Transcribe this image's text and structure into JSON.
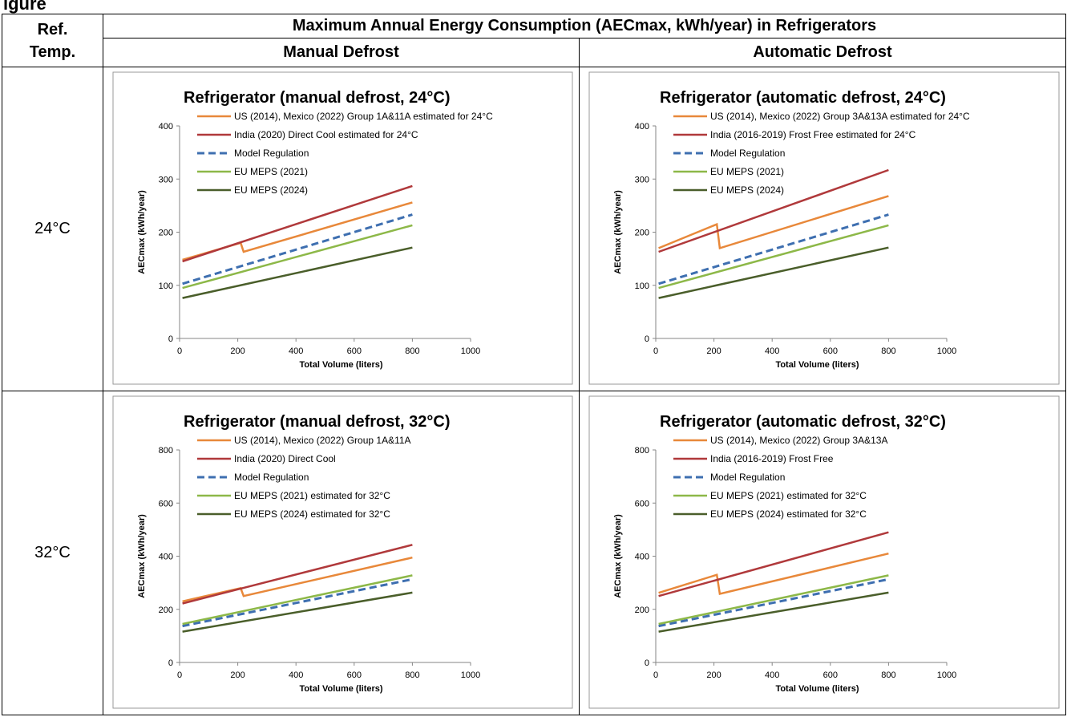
{
  "caption": "igure",
  "header": {
    "ref_label_1": "Ref.",
    "ref_label_2": "Temp.",
    "main_title": "Maximum Annual Energy Consumption (AECmax, kWh/year) in Refrigerators",
    "col_manual": "Manual Defrost",
    "col_auto": "Automatic Defrost"
  },
  "rows": [
    {
      "temp": "24°C"
    },
    {
      "temp": "32°C"
    }
  ],
  "colors": {
    "us_mexico": "#E8883A",
    "india": "#B0393B",
    "model": "#3E6FB0",
    "eu2021": "#8DB848",
    "eu2024": "#4A5E2A"
  },
  "chart_data": [
    {
      "type": "line",
      "title": "Refrigerator (manual defrost, 24°C)",
      "xlabel": "Total Volume (liters)",
      "ylabel": "AECmax (kWh/year)",
      "xlim": [
        0,
        1000
      ],
      "ylim": [
        0,
        400
      ],
      "xticks": [
        "0",
        "200",
        "400",
        "600",
        "800",
        "1000"
      ],
      "yticks": [
        "0",
        "100",
        "200",
        "300",
        "400"
      ],
      "series": [
        {
          "name": "US (2014), Mexico (2022) Group 1A&11A estimated for 24°C",
          "color": "#E8883A",
          "dash": false,
          "x": [
            10,
            210,
            220,
            800
          ],
          "y": [
            null,
            180,
            163,
            256
          ]
        },
        {
          "name": "India (2020) Direct Cool estimated for 24°C",
          "color": "#B0393B",
          "dash": false,
          "x": [
            10,
            800
          ],
          "y": [
            145,
            287
          ]
        },
        {
          "name": "Model Regulation",
          "color": "#3E6FB0",
          "dash": true,
          "x": [
            10,
            800
          ],
          "y": [
            103,
            233
          ]
        },
        {
          "name": "EU MEPS (2021)",
          "color": "#8DB848",
          "dash": false,
          "x": [
            10,
            800
          ],
          "y": [
            95,
            213
          ]
        },
        {
          "name": "EU MEPS (2024)",
          "color": "#4A5E2A",
          "dash": false,
          "x": [
            10,
            800
          ],
          "y": [
            76,
            171
          ]
        }
      ]
    },
    {
      "type": "line",
      "title": "Refrigerator (automatic defrost, 24°C)",
      "xlabel": "Total Volume (liters)",
      "ylabel": "AECmax (kWh/year)",
      "xlim": [
        0,
        1000
      ],
      "ylim": [
        0,
        400
      ],
      "xticks": [
        "0",
        "200",
        "400",
        "600",
        "800",
        "1000"
      ],
      "yticks": [
        "0",
        "100",
        "200",
        "300",
        "400"
      ],
      "series": [
        {
          "name": "US (2014), Mexico (2022) Group 3A&13A estimated for 24°C",
          "color": "#E8883A",
          "dash": false,
          "x": [
            10,
            210,
            220,
            800
          ],
          "y": [
            170,
            215,
            170,
            268
          ]
        },
        {
          "name": "India (2016-2019) Frost Free estimated for 24°C",
          "color": "#B0393B",
          "dash": false,
          "x": [
            10,
            800
          ],
          "y": [
            163,
            317
          ]
        },
        {
          "name": "Model Regulation",
          "color": "#3E6FB0",
          "dash": true,
          "x": [
            10,
            800
          ],
          "y": [
            103,
            233
          ]
        },
        {
          "name": "EU MEPS (2021)",
          "color": "#8DB848",
          "dash": false,
          "x": [
            10,
            800
          ],
          "y": [
            95,
            213
          ]
        },
        {
          "name": "EU MEPS (2024)",
          "color": "#4A5E2A",
          "dash": false,
          "x": [
            10,
            800
          ],
          "y": [
            76,
            171
          ]
        }
      ]
    },
    {
      "type": "line",
      "title": "Refrigerator (manual defrost, 32°C)",
      "xlabel": "Total Volume (liters)",
      "ylabel": "AECmax (kWh/year)",
      "xlim": [
        0,
        1000
      ],
      "ylim": [
        0,
        800
      ],
      "xticks": [
        "0",
        "200",
        "400",
        "600",
        "800",
        "1000"
      ],
      "yticks": [
        "0",
        "200",
        "400",
        "600",
        "800"
      ],
      "series": [
        {
          "name": "US (2014), Mexico (2022) Group 1A&11A",
          "color": "#E8883A",
          "dash": false,
          "x": [
            10,
            210,
            220,
            800
          ],
          "y": [
            null,
            280,
            250,
            395
          ]
        },
        {
          "name": "India (2020) Direct Cool",
          "color": "#B0393B",
          "dash": false,
          "x": [
            10,
            800
          ],
          "y": [
            222,
            443
          ]
        },
        {
          "name": "Model Regulation",
          "color": "#3E6FB0",
          "dash": true,
          "x": [
            10,
            800
          ],
          "y": [
            137,
            313
          ]
        },
        {
          "name": "EU MEPS (2021) estimated for 32°C",
          "color": "#8DB848",
          "dash": false,
          "x": [
            10,
            800
          ],
          "y": [
            145,
            328
          ]
        },
        {
          "name": "EU MEPS (2024) estimated for 32°C",
          "color": "#4A5E2A",
          "dash": false,
          "x": [
            10,
            800
          ],
          "y": [
            116,
            263
          ]
        }
      ]
    },
    {
      "type": "line",
      "title": "Refrigerator (automatic defrost, 32°C)",
      "xlabel": "Total Volume (liters)",
      "ylabel": "AECmax (kWh/year)",
      "xlim": [
        0,
        1000
      ],
      "ylim": [
        0,
        800
      ],
      "xticks": [
        "0",
        "200",
        "400",
        "600",
        "800",
        "1000"
      ],
      "yticks": [
        "0",
        "200",
        "400",
        "600",
        "800"
      ],
      "series": [
        {
          "name": "US (2014), Mexico (2022) Group 3A&13A",
          "color": "#E8883A",
          "dash": false,
          "x": [
            10,
            210,
            220,
            800
          ],
          "y": [
            262,
            330,
            258,
            410
          ]
        },
        {
          "name": "India (2016-2019) Frost Free",
          "color": "#B0393B",
          "dash": false,
          "x": [
            10,
            800
          ],
          "y": [
            250,
            490
          ]
        },
        {
          "name": "Model Regulation",
          "color": "#3E6FB0",
          "dash": true,
          "x": [
            10,
            800
          ],
          "y": [
            137,
            313
          ]
        },
        {
          "name": "EU MEPS (2021) estimated for 32°C",
          "color": "#8DB848",
          "dash": false,
          "x": [
            10,
            800
          ],
          "y": [
            145,
            328
          ]
        },
        {
          "name": "EU MEPS (2024) estimated for 32°C",
          "color": "#4A5E2A",
          "dash": false,
          "x": [
            10,
            800
          ],
          "y": [
            116,
            263
          ]
        }
      ]
    }
  ]
}
